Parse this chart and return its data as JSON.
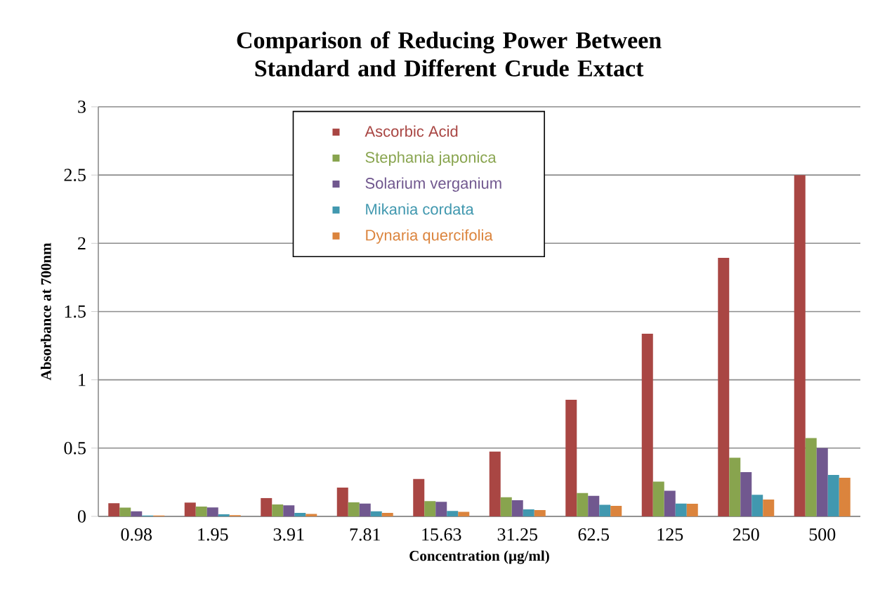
{
  "chart_data": {
    "type": "bar",
    "title": "Comparison of Reducing Power Between Standard and Different Crude Extact",
    "xlabel": "Concentration (µg/ml)",
    "ylabel": "Absorbance at 700nm",
    "categories": [
      "0.98",
      "1.95",
      "3.91",
      "7.81",
      "15.63",
      "31.25",
      "62.5",
      "125",
      "250",
      "500"
    ],
    "series": [
      {
        "name": "Ascorbic Acid",
        "color": "#a94643",
        "values": [
          0.096,
          0.101,
          0.134,
          0.211,
          0.274,
          0.474,
          0.854,
          1.338,
          1.894,
          2.5
        ]
      },
      {
        "name": "Stephania japonica",
        "color": "#88a44e",
        "values": [
          0.064,
          0.072,
          0.088,
          0.103,
          0.112,
          0.14,
          0.171,
          0.254,
          0.43,
          0.574
        ]
      },
      {
        "name": "Solarium verganium",
        "color": "#71588f",
        "values": [
          0.037,
          0.066,
          0.081,
          0.094,
          0.107,
          0.118,
          0.151,
          0.188,
          0.324,
          0.5
        ]
      },
      {
        "name": "Mikania cordata",
        "color": "#4198af",
        "values": [
          0.007,
          0.015,
          0.026,
          0.037,
          0.04,
          0.051,
          0.085,
          0.094,
          0.158,
          0.303
        ]
      },
      {
        "name": "Dynaria quercifolia",
        "color": "#db843d",
        "values": [
          0.006,
          0.009,
          0.018,
          0.026,
          0.033,
          0.046,
          0.077,
          0.092,
          0.123,
          0.283
        ]
      }
    ],
    "ylim": [
      0,
      3
    ],
    "yticks": [
      0,
      0.5,
      1,
      1.5,
      2,
      2.5,
      3
    ],
    "grid": "y",
    "legend": "top"
  }
}
